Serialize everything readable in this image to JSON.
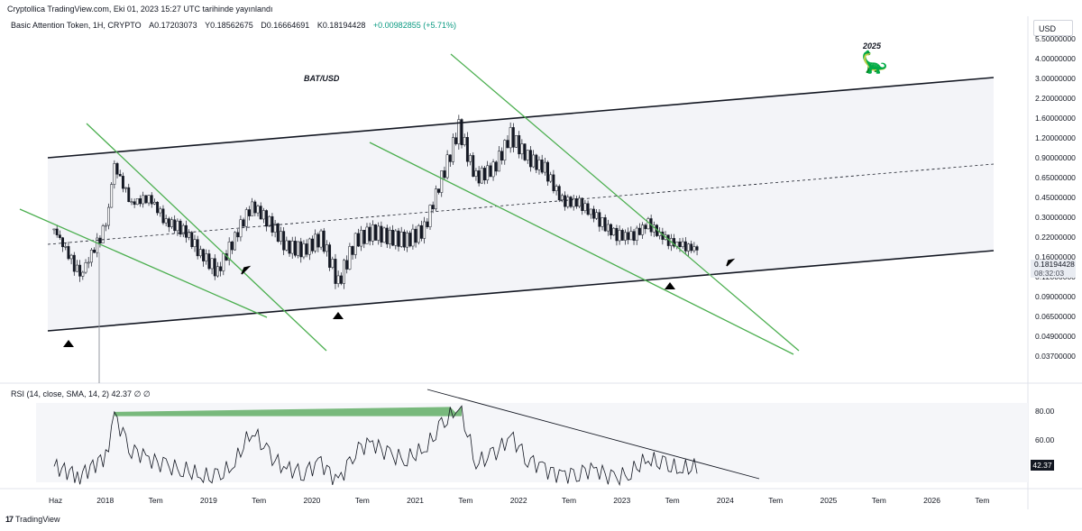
{
  "publish_line": "Cryptollica TradingView.com, Eki 01, 2023 15:27 UTC tarihinde yayınlandı",
  "symbol": {
    "name": "Basic Attention Token, 1H, CRYPTO",
    "open": "A0.17203073",
    "high": "Y0.18562675",
    "low": "D0.16664691",
    "close": "K0.18194428",
    "change": "+0.00982855 (+5.71%)"
  },
  "currency_button": "USD",
  "last_price": {
    "value": "0.18194428",
    "countdown": "08:32:03"
  },
  "rsi": {
    "legend": "RSI (14, close, SMA, 14, 2)  42.37  ∅  ∅",
    "value_tag": "42.37",
    "ticks": [
      "80.00",
      "60.00"
    ]
  },
  "footer": {
    "logo": "17",
    "brand": "TradingView"
  },
  "colors": {
    "trendline_green": "#4caf50",
    "channel": "#131722",
    "candle_up": "#ffffff",
    "candle_down": "#131722",
    "rsi_fill": "#43a047",
    "band": "#f5f6f9"
  },
  "chart_data": {
    "type": "candlestick",
    "title": "BAT/USD",
    "annotations": [
      "BAT/USD",
      "2025"
    ],
    "y_scale": "log",
    "y_ticks": [
      "5.50000000",
      "4.00000000",
      "3.00000000",
      "2.20000000",
      "1.60000000",
      "1.20000000",
      "0.90000000",
      "0.65000000",
      "0.45000000",
      "0.30000000",
      "0.22000000",
      "0.16000000",
      "0.12000000",
      "0.09000000",
      "0.06500000",
      "0.04900000",
      "0.03700000"
    ],
    "x_ticks": [
      "Haz",
      "2018",
      "Tem",
      "2019",
      "Tem",
      "2020",
      "Tem",
      "2021",
      "Tem",
      "2022",
      "Tem",
      "2023",
      "Tem",
      "2024",
      "Tem",
      "2025",
      "Tem",
      "2026",
      "Tem"
    ],
    "x": [
      "2017-06",
      "2017-09",
      "2017-12",
      "2018-01",
      "2018-03",
      "2018-05",
      "2018-07",
      "2018-09",
      "2018-11",
      "2019-01",
      "2019-03",
      "2019-05",
      "2019-07",
      "2019-09",
      "2019-11",
      "2020-01",
      "2020-03",
      "2020-05",
      "2020-07",
      "2020-09",
      "2020-11",
      "2021-01",
      "2021-03",
      "2021-05",
      "2021-07",
      "2021-09",
      "2021-11",
      "2022-01",
      "2022-03",
      "2022-05",
      "2022-07",
      "2022-09",
      "2022-11",
      "2023-01",
      "2023-03",
      "2023-05",
      "2023-07",
      "2023-09"
    ],
    "close": [
      0.25,
      0.12,
      0.26,
      0.8,
      0.4,
      0.45,
      0.28,
      0.25,
      0.17,
      0.13,
      0.22,
      0.38,
      0.28,
      0.19,
      0.18,
      0.22,
      0.11,
      0.21,
      0.24,
      0.22,
      0.21,
      0.25,
      0.65,
      1.4,
      0.65,
      0.75,
      1.25,
      0.9,
      0.75,
      0.42,
      0.4,
      0.3,
      0.23,
      0.22,
      0.27,
      0.21,
      0.19,
      0.18
    ],
    "rsi": [
      42,
      35,
      50,
      80,
      55,
      48,
      42,
      40,
      35,
      33,
      45,
      70,
      50,
      40,
      38,
      45,
      30,
      55,
      60,
      50,
      48,
      55,
      72,
      88,
      45,
      50,
      65,
      48,
      40,
      35,
      38,
      40,
      32,
      38,
      48,
      42,
      40,
      42
    ]
  }
}
